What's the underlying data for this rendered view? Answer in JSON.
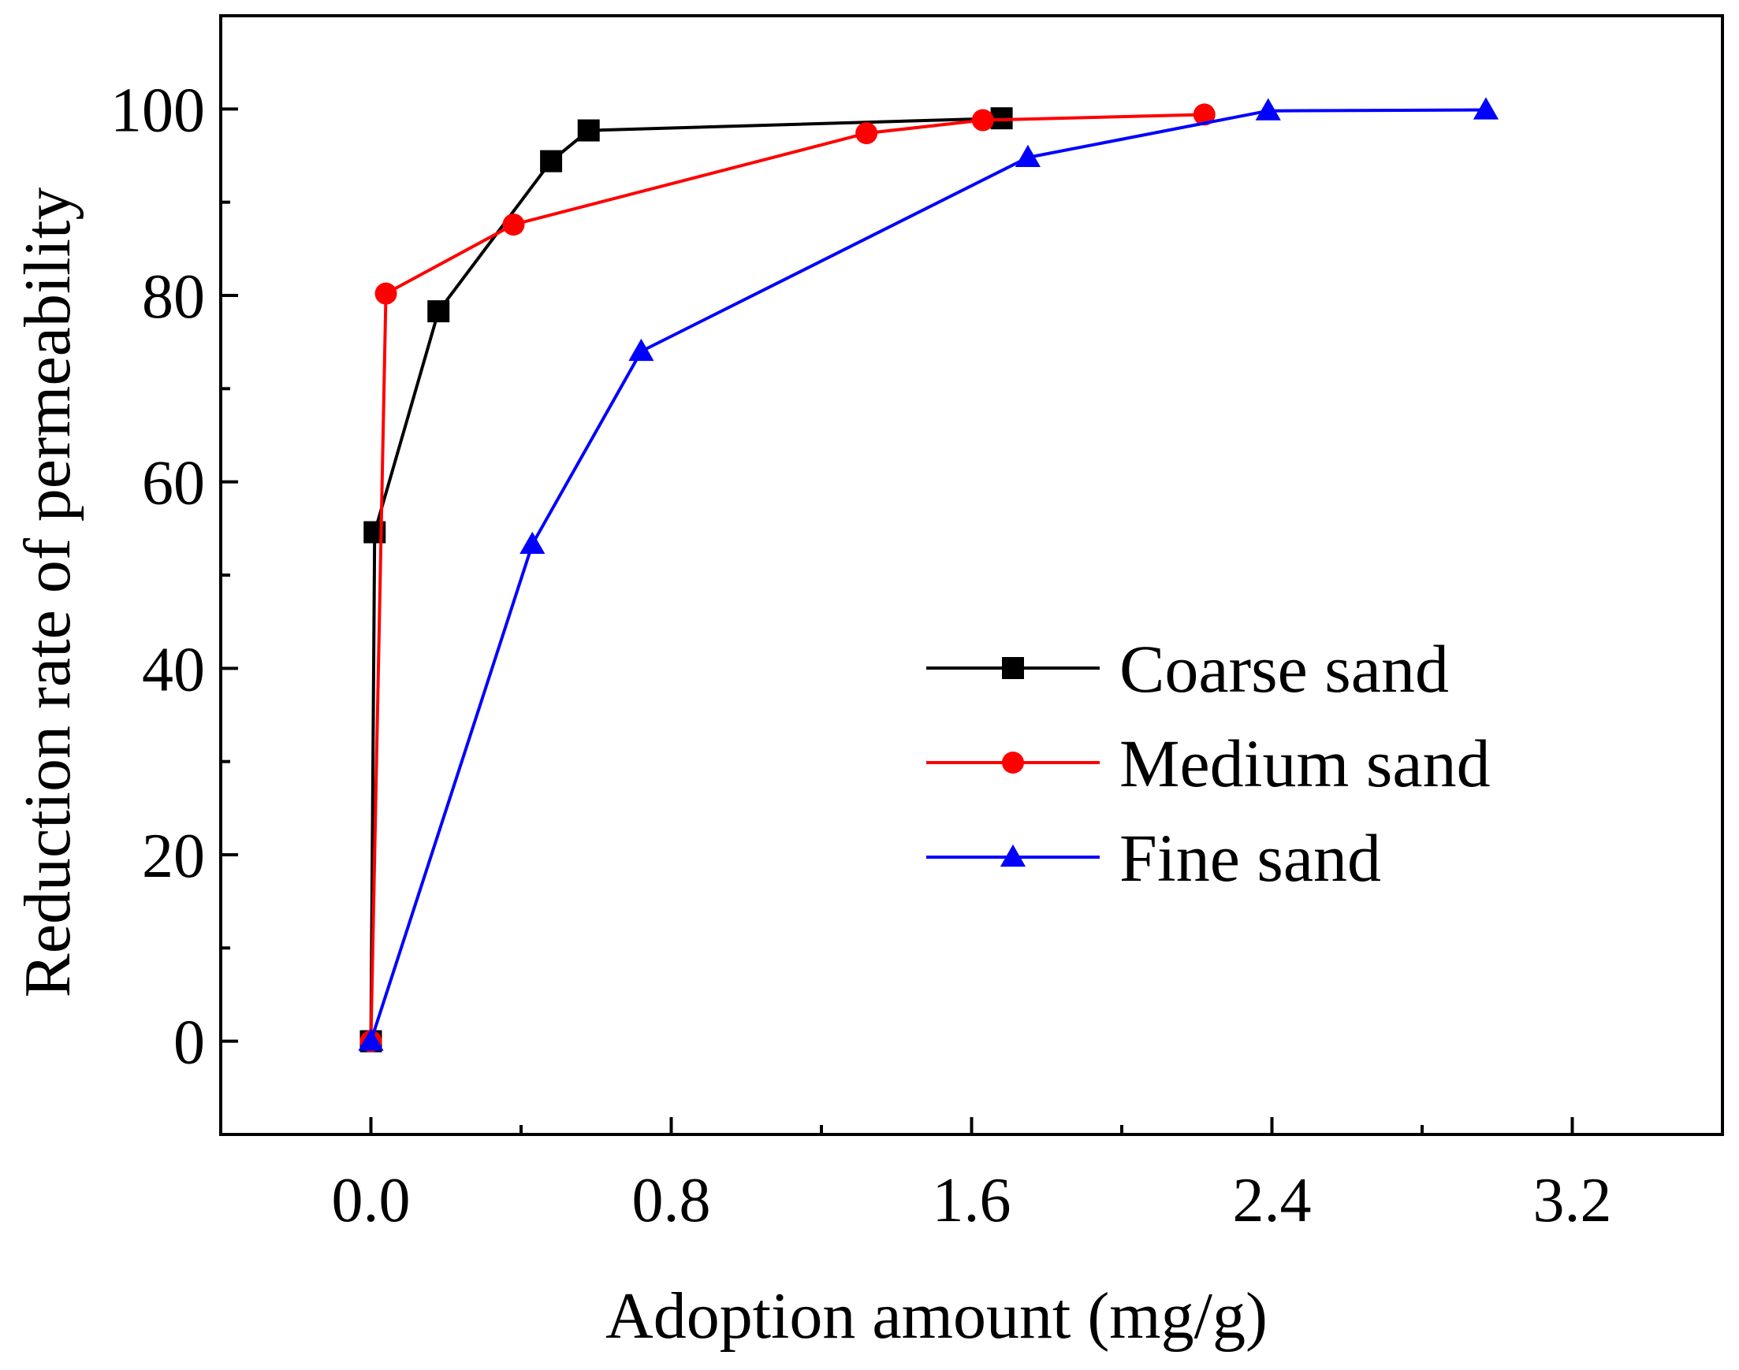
{
  "chart_data": {
    "type": "line",
    "title": "",
    "xlabel": "Adoption amount (mg/g)",
    "ylabel": "Reduction rate of permeability",
    "xlim": [
      -0.4,
      3.6
    ],
    "ylim": [
      -10,
      110
    ],
    "x_ticks": [
      0.0,
      0.8,
      1.6,
      2.4,
      3.2
    ],
    "x_tick_labels": [
      "0.0",
      "0.8",
      "1.6",
      "2.4",
      "3.2"
    ],
    "x_minor_ticks": [
      0.4,
      1.2,
      2.0,
      2.8
    ],
    "y_ticks": [
      0,
      20,
      40,
      60,
      80,
      100
    ],
    "y_tick_labels": [
      "0",
      "20",
      "40",
      "60",
      "80",
      "100"
    ],
    "y_minor_ticks": [
      10,
      30,
      50,
      70,
      90
    ],
    "grid": false,
    "legend_position": "center-right",
    "series": [
      {
        "name": "Coarse sand",
        "color": "#000000",
        "marker": "square",
        "x": [
          0.0,
          0.01,
          0.18,
          0.48,
          0.58,
          1.68
        ],
        "y": [
          0,
          54.6,
          78.3,
          94.4,
          97.7,
          99.0
        ]
      },
      {
        "name": "Medium sand",
        "color": "#ff0000",
        "marker": "circle",
        "x": [
          0.0,
          0.04,
          0.38,
          1.32,
          1.63,
          2.22
        ],
        "y": [
          0,
          80.2,
          87.6,
          97.4,
          98.8,
          99.4
        ]
      },
      {
        "name": "Fine sand",
        "color": "#0000ff",
        "marker": "triangle",
        "x": [
          0.0,
          0.43,
          0.72,
          1.75,
          2.39,
          2.97
        ],
        "y": [
          0,
          53.3,
          74.0,
          94.8,
          99.8,
          99.9
        ]
      }
    ]
  }
}
